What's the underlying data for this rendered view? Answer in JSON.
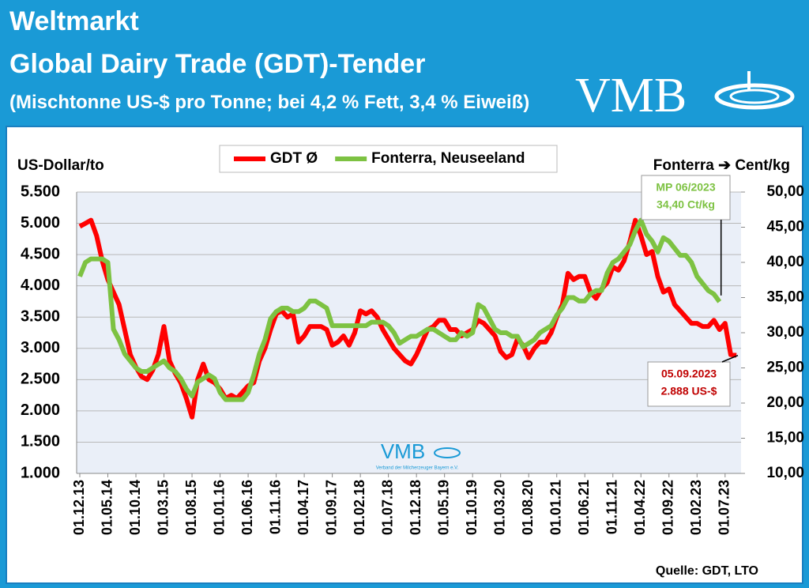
{
  "header": {
    "title": "Weltmarkt",
    "subtitle": "Global Dairy Trade (GDT)-Tender",
    "note": "(Mischtonne US-$ pro Tonne; bei 4,2 % Fett, 3,4 % Eiweiß)",
    "logo": "VMB"
  },
  "chart_data": {
    "type": "line",
    "y_label": "US-Dollar/to",
    "y2_label": "Fonterra ➔ Cent/kg",
    "watermark": "VMB",
    "watermark_sub": "Verband der Milcherzeuger Bayern e.V.",
    "source": "Quelle: GDT, LTO",
    "categories": [
      "01.12.13",
      null,
      null,
      null,
      null,
      "01.05.14",
      null,
      null,
      null,
      null,
      "01.10.14",
      null,
      null,
      null,
      null,
      "01.03.15",
      null,
      null,
      null,
      null,
      "01.08.15",
      null,
      null,
      null,
      null,
      "01.01.16",
      null,
      null,
      null,
      null,
      "01.06.16",
      null,
      null,
      null,
      null,
      "01.11.16",
      null,
      null,
      null,
      null,
      "01.04.17",
      null,
      null,
      null,
      null,
      "01.09.17",
      null,
      null,
      null,
      null,
      "01.02.18",
      null,
      null,
      null,
      null,
      "01.07.18",
      null,
      null,
      null,
      null,
      "01.12.18",
      null,
      null,
      null,
      null,
      "01.05.19",
      null,
      null,
      null,
      null,
      "01.10.19",
      null,
      null,
      null,
      null,
      "01.03.20",
      null,
      null,
      null,
      null,
      "01.08.20",
      null,
      null,
      null,
      null,
      "01.01.21",
      null,
      null,
      null,
      null,
      "01.06.21",
      null,
      null,
      null,
      null,
      "01.11.21",
      null,
      null,
      null,
      null,
      "01.04.22",
      null,
      null,
      null,
      null,
      "01.09.22",
      null,
      null,
      null,
      null,
      "01.02.23",
      null,
      null,
      null,
      null,
      "01.07.23",
      null,
      null
    ],
    "series": [
      {
        "name": "GDT Ø",
        "color": "#ff0000",
        "values": [
          4950,
          5000,
          5050,
          4800,
          4400,
          4100,
          3900,
          3700,
          3300,
          2900,
          2700,
          2550,
          2500,
          2650,
          2900,
          3350,
          2800,
          2600,
          2450,
          2200,
          1900,
          2500,
          2750,
          2500,
          2450,
          2350,
          2200,
          2250,
          2200,
          2300,
          2400,
          2450,
          2800,
          3000,
          3300,
          3550,
          3600,
          3500,
          3550,
          3100,
          3200,
          3350,
          3350,
          3350,
          3300,
          3050,
          3100,
          3200,
          3050,
          3250,
          3600,
          3550,
          3600,
          3500,
          3300,
          3150,
          3000,
          2900,
          2800,
          2750,
          2900,
          3100,
          3300,
          3350,
          3450,
          3450,
          3300,
          3300,
          3200,
          3250,
          3300,
          3450,
          3400,
          3300,
          3200,
          2950,
          2850,
          2900,
          3150,
          3050,
          2850,
          3000,
          3100,
          3100,
          3250,
          3500,
          3700,
          4200,
          4100,
          4150,
          4150,
          3900,
          3800,
          3950,
          4050,
          4300,
          4250,
          4400,
          4700,
          5050,
          4800,
          4500,
          4550,
          4150,
          3900,
          3950,
          3700,
          3600,
          3500,
          3400,
          3400,
          3350,
          3350,
          3450,
          3300,
          3400,
          2900,
          2888
        ]
      },
      {
        "name": "Fonterra, Neuseeland",
        "color": "#7dc242",
        "axis": "y2",
        "values": [
          38,
          40,
          40.5,
          40.5,
          40.5,
          40,
          30.5,
          29,
          27,
          26,
          25,
          24.5,
          24.5,
          25,
          25.5,
          26,
          25,
          24.5,
          23.5,
          22,
          21,
          23,
          23.5,
          24,
          23.5,
          21.5,
          20.5,
          20.5,
          20.5,
          20.5,
          21.5,
          24,
          27,
          29,
          32,
          33,
          33.5,
          33.5,
          33,
          33,
          33.5,
          34.5,
          34.5,
          34,
          33.5,
          31,
          31,
          31,
          31,
          31,
          31,
          31,
          31.5,
          31.5,
          31.5,
          31,
          30,
          28.5,
          29,
          29.5,
          29.5,
          30,
          30.5,
          30.5,
          30,
          29.5,
          29,
          29,
          30,
          29.5,
          30,
          34,
          33.5,
          32,
          30.5,
          30,
          30,
          29.5,
          29.5,
          28,
          28.5,
          29,
          30,
          30.5,
          31,
          32.5,
          33.5,
          35,
          35,
          34.5,
          34.5,
          35.5,
          36,
          36,
          38.5,
          40,
          40.5,
          41.5,
          42.5,
          44.5,
          46,
          44,
          43,
          41.5,
          43.5,
          43,
          42,
          41,
          41,
          40,
          38,
          37,
          36,
          35.5,
          34.4,
          null,
          null,
          null
        ]
      }
    ],
    "ylim": [
      1000,
      5500
    ],
    "yticks": [
      {
        "value": 1000,
        "label": "1.000"
      },
      {
        "value": 1500,
        "label": "1.500"
      },
      {
        "value": 2000,
        "label": "2.000"
      },
      {
        "value": 2500,
        "label": "2.500"
      },
      {
        "value": 3000,
        "label": "3.000"
      },
      {
        "value": 3500,
        "label": "3.500"
      },
      {
        "value": 4000,
        "label": "4.000"
      },
      {
        "value": 4500,
        "label": "4.500"
      },
      {
        "value": 5000,
        "label": "5.000"
      },
      {
        "value": 5500,
        "label": "5.500"
      }
    ],
    "y2lim": [
      10,
      50
    ],
    "y2ticks": [
      {
        "value": 10,
        "label": "10,00"
      },
      {
        "value": 15,
        "label": "15,00"
      },
      {
        "value": 20,
        "label": "20,00"
      },
      {
        "value": 25,
        "label": "25,00"
      },
      {
        "value": 30,
        "label": "30,00"
      },
      {
        "value": 35,
        "label": "35,00"
      },
      {
        "value": 40,
        "label": "40,00"
      },
      {
        "value": 45,
        "label": "45,00"
      },
      {
        "value": 50,
        "label": "50,00"
      }
    ],
    "grid": true,
    "legend": "top",
    "annotations": [
      {
        "lines": [
          "MP 06/2023",
          "34,40 Ct/kg"
        ],
        "color": "#7dc242"
      },
      {
        "lines": [
          "05.09.2023",
          "2.888 US-$"
        ],
        "color": "#c00000"
      }
    ]
  }
}
